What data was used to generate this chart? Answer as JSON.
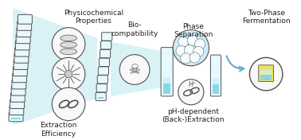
{
  "background_color": "#ffffff",
  "funnel_color": "#b8e8f0",
  "funnel_alpha": 0.55,
  "tube_body_color": "#e8f8ff",
  "tube_outline_color": "#505050",
  "tube_liquid_color": "#7dd4e8",
  "tube_liquid_color2": "#c8eef8",
  "circle_fill": "#f8f8f8",
  "circle_outline": "#505050",
  "text_color": "#222222",
  "arrow_color": "#6ab0cc",
  "labels": {
    "physicochemical": "Physicochemical\nProperties",
    "biocompatibility": "Bio-\ncompatibility",
    "extraction": "Extraction\nEfficiency",
    "phase_separation": "Phase\nSeparation",
    "ph_dependent": "pH-dependent\n(Back-)Extraction",
    "two_phase": "Two-Phase\nFermentation"
  },
  "figsize": [
    3.78,
    1.76
  ],
  "dpi": 100
}
